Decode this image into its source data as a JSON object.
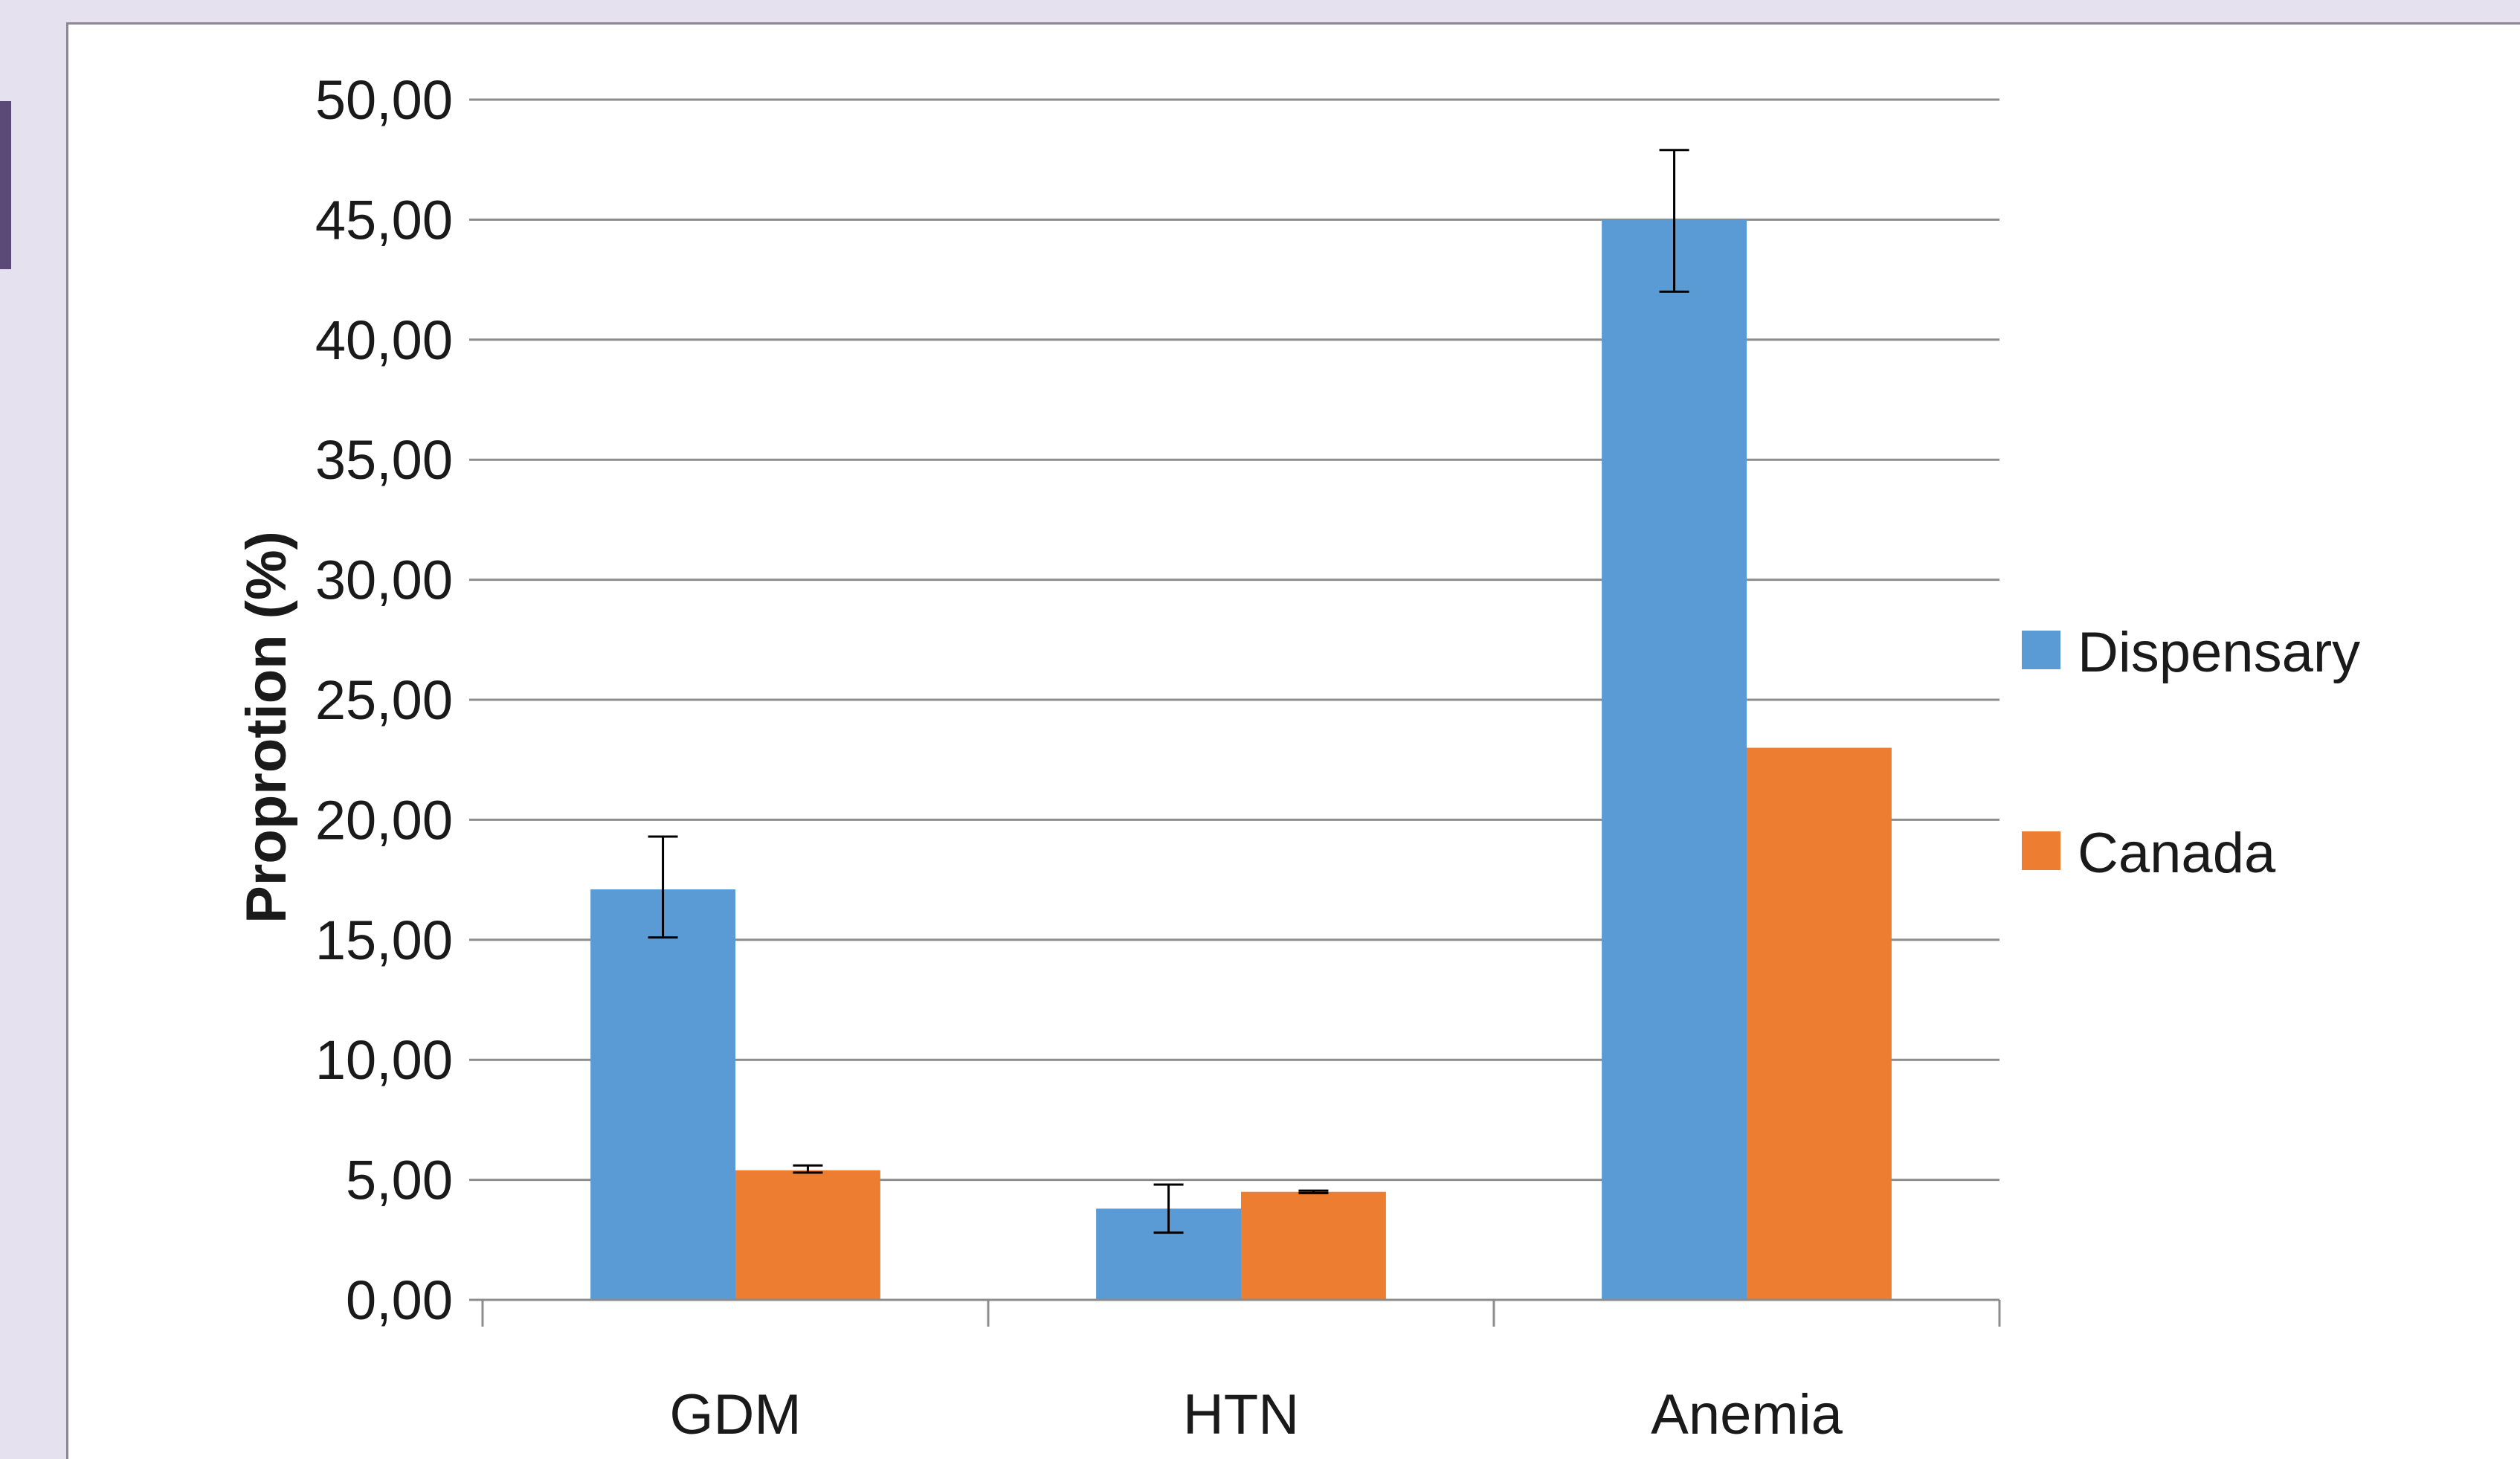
{
  "colors": {
    "page_background": "#e6e1ee",
    "accent_bar": "#5b4a78",
    "panel": "#ffffff",
    "grid": "#8c8c8c",
    "text": "#1a1a1a"
  },
  "chart_data": {
    "type": "bar",
    "title": "",
    "xlabel": "",
    "ylabel": "Proprotion  (%)",
    "ylim": [
      0,
      50
    ],
    "ytick_step": 5,
    "ytick_labels": [
      "0,00",
      "5,00",
      "10,00",
      "15,00",
      "20,00",
      "25,00",
      "30,00",
      "35,00",
      "40,00",
      "45,00",
      "50,00"
    ],
    "grid": true,
    "legend_position": "right",
    "categories": [
      "GDM",
      "HTN",
      "Anemia"
    ],
    "series": [
      {
        "name": "Dispensary",
        "color": "#5b9bd5",
        "values": [
          17.1,
          3.8,
          45.0
        ],
        "error_low": [
          15.1,
          2.8,
          42.0
        ],
        "error_high": [
          19.3,
          4.8,
          47.9
        ]
      },
      {
        "name": "Canada",
        "color": "#ed7d31",
        "values": [
          5.4,
          4.5,
          23.0
        ],
        "error_low": [
          5.3,
          4.45,
          null
        ],
        "error_high": [
          5.6,
          4.55,
          null
        ]
      }
    ]
  }
}
